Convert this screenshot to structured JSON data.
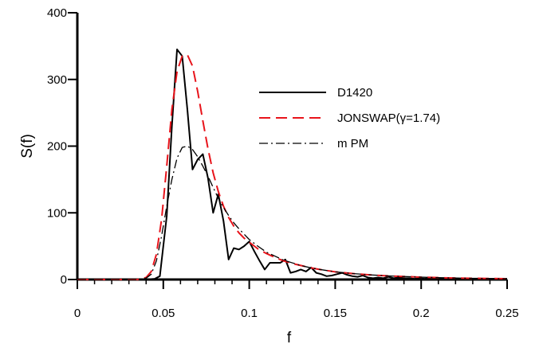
{
  "chart_data": {
    "type": "line",
    "xlabel": "f",
    "ylabel": "S(f)",
    "xlim": [
      0,
      0.25
    ],
    "ylim": [
      0,
      400
    ],
    "xticks": [
      0,
      0.05,
      0.1,
      0.15,
      0.2,
      0.25
    ],
    "xtick_labels": [
      "0",
      "0.05",
      "0.1",
      "0.15",
      "0.2",
      "0.25"
    ],
    "yticks": [
      0,
      100,
      200,
      300,
      400
    ],
    "ytick_labels": [
      "0",
      "100",
      "200",
      "300",
      "400"
    ],
    "x_minor_step": 0.01,
    "grid": false,
    "legend_position": "right",
    "series": [
      {
        "name": "D1420",
        "color": "#000000",
        "dash": "solid",
        "x": [
          0.0,
          0.04,
          0.045,
          0.048,
          0.052,
          0.055,
          0.058,
          0.061,
          0.064,
          0.067,
          0.07,
          0.073,
          0.076,
          0.079,
          0.082,
          0.085,
          0.088,
          0.091,
          0.094,
          0.097,
          0.1,
          0.103,
          0.106,
          0.109,
          0.112,
          0.115,
          0.118,
          0.121,
          0.124,
          0.127,
          0.13,
          0.133,
          0.136,
          0.139,
          0.142,
          0.145,
          0.148,
          0.151,
          0.154,
          0.157,
          0.16,
          0.163,
          0.166,
          0.169,
          0.172,
          0.175,
          0.178,
          0.181,
          0.184,
          0.187,
          0.19,
          0.193,
          0.196,
          0.199,
          0.202,
          0.205,
          0.208,
          0.211,
          0.214,
          0.217,
          0.22,
          0.223,
          0.226,
          0.229,
          0.232,
          0.235,
          0.238,
          0.241,
          0.244,
          0.247,
          0.25
        ],
        "y": [
          0,
          0,
          1,
          5,
          95,
          230,
          345,
          335,
          255,
          165,
          180,
          188,
          152,
          100,
          128,
          88,
          30,
          47,
          45,
          50,
          57,
          42,
          28,
          15,
          25,
          25,
          25,
          30,
          10,
          12,
          15,
          12,
          18,
          10,
          8,
          5,
          6,
          8,
          10,
          7,
          5,
          4,
          6,
          3,
          2,
          3,
          2,
          4,
          2,
          3,
          2,
          2,
          1,
          2,
          1,
          2,
          1,
          2,
          1,
          1,
          2,
          1,
          1,
          1,
          1,
          1,
          1,
          1,
          1,
          1,
          1
        ]
      },
      {
        "name": "JONSWAP(γ=1.74)",
        "color": "#e8141b",
        "dash": "dashed",
        "x": [
          0.0,
          0.035,
          0.04,
          0.043,
          0.046,
          0.049,
          0.052,
          0.055,
          0.058,
          0.061,
          0.064,
          0.067,
          0.07,
          0.073,
          0.076,
          0.079,
          0.082,
          0.085,
          0.088,
          0.091,
          0.094,
          0.097,
          0.1,
          0.105,
          0.11,
          0.115,
          0.12,
          0.125,
          0.13,
          0.135,
          0.14,
          0.145,
          0.15,
          0.16,
          0.17,
          0.18,
          0.19,
          0.2,
          0.21,
          0.22,
          0.23,
          0.24,
          0.25
        ],
        "y": [
          0,
          0,
          3,
          12,
          38,
          90,
          170,
          255,
          312,
          335,
          337,
          320,
          282,
          238,
          196,
          160,
          132,
          110,
          93,
          80,
          70,
          62,
          56,
          46,
          39,
          33,
          28,
          24,
          21,
          18,
          15.5,
          13.5,
          11.5,
          9,
          7,
          5.5,
          4.5,
          3.5,
          2.8,
          2.2,
          1.8,
          1.5,
          1.2
        ]
      },
      {
        "name": "m PM",
        "color": "#000000",
        "dash": "dashdot",
        "x": [
          0.0,
          0.035,
          0.04,
          0.043,
          0.046,
          0.049,
          0.052,
          0.055,
          0.058,
          0.061,
          0.064,
          0.067,
          0.07,
          0.073,
          0.076,
          0.079,
          0.082,
          0.085,
          0.088,
          0.091,
          0.094,
          0.097,
          0.1,
          0.105,
          0.11,
          0.115,
          0.12,
          0.125,
          0.13,
          0.135,
          0.14,
          0.145,
          0.15,
          0.16,
          0.17,
          0.18,
          0.19,
          0.2,
          0.21,
          0.22,
          0.23,
          0.24,
          0.25
        ],
        "y": [
          0,
          0,
          2,
          8,
          28,
          65,
          110,
          150,
          182,
          198,
          200,
          195,
          184,
          170,
          155,
          138,
          122,
          108,
          96,
          85,
          76,
          68,
          60,
          50,
          41,
          35,
          29,
          25,
          21,
          18,
          15.5,
          13.5,
          11.5,
          9,
          7,
          5.5,
          4.5,
          3.5,
          2.8,
          2.2,
          1.8,
          1.5,
          1.2
        ]
      }
    ]
  }
}
